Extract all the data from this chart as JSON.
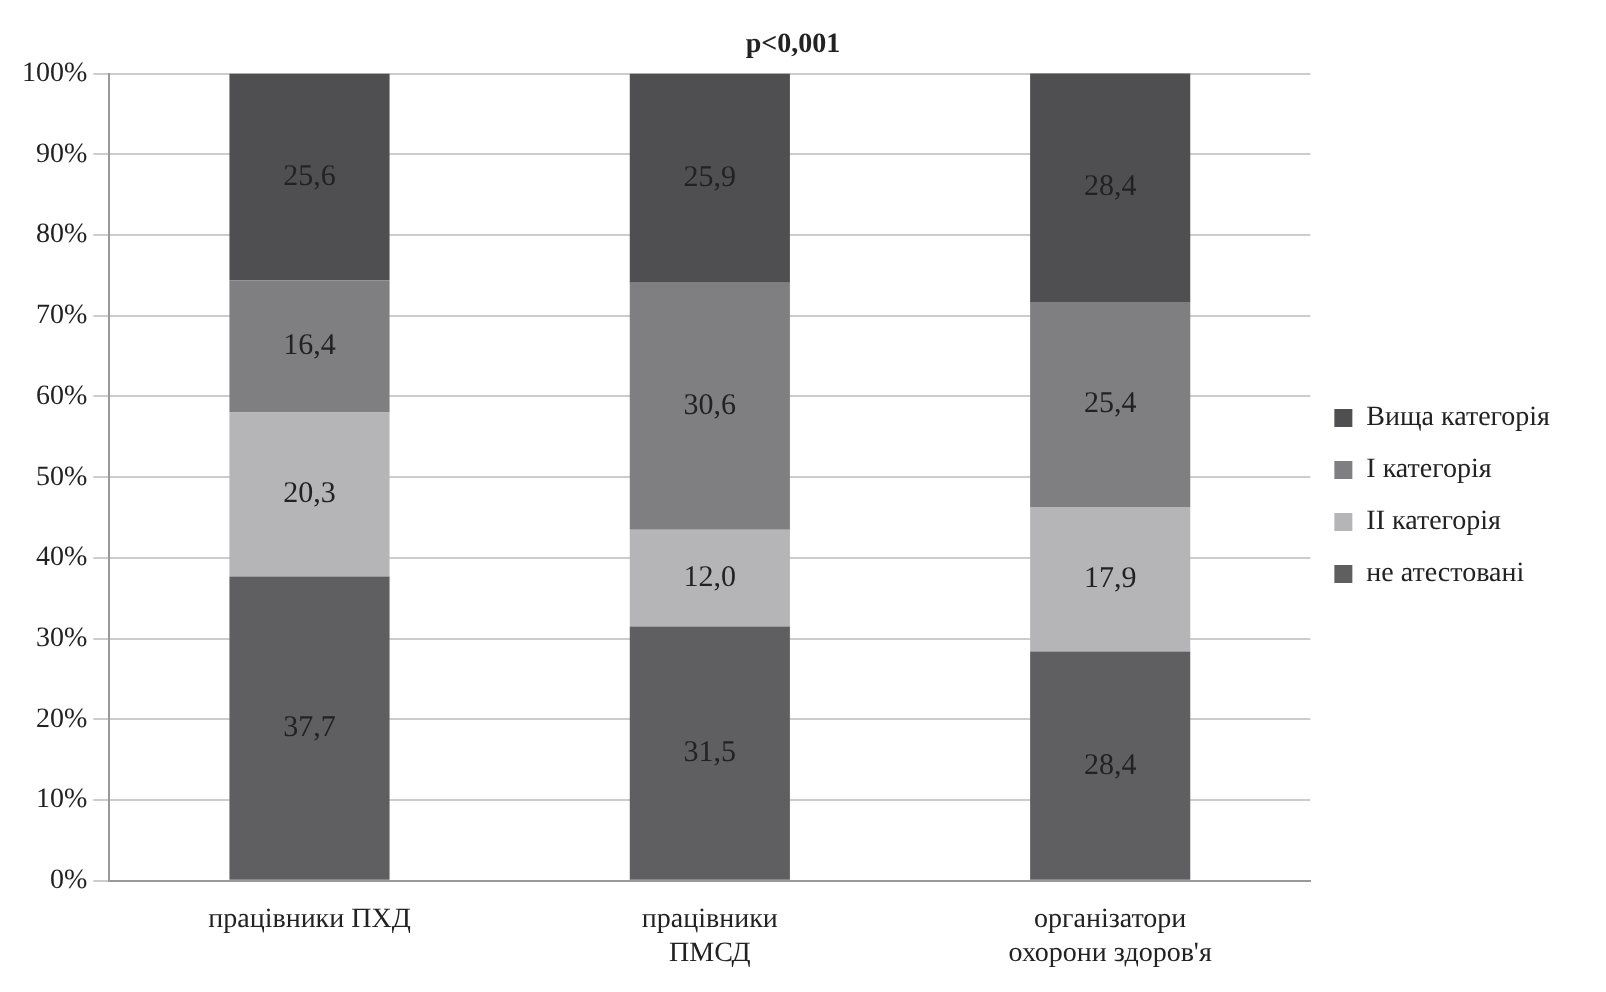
{
  "chart_data": {
    "type": "bar",
    "title": "p<0,001",
    "categories": [
      "працівники ПХД",
      "працівники ПМСД",
      "організатори охорони здоров'я"
    ],
    "stacked": true,
    "series": [
      {
        "name": "не атестовані",
        "color": "#5f5f61",
        "values": [
          37.7,
          31.5,
          28.4
        ],
        "value_labels": [
          "37,7",
          "31,5",
          "28,4"
        ]
      },
      {
        "name": "ІІ категорія",
        "color": "#b5b5b7",
        "values": [
          20.3,
          12.0,
          17.9
        ],
        "value_labels": [
          "20,3",
          "12,0",
          "17,9"
        ]
      },
      {
        "name": "І категорія",
        "color": "#7f7f81",
        "values": [
          16.4,
          30.6,
          25.4
        ],
        "value_labels": [
          "16,4",
          "30,6",
          "25,4"
        ]
      },
      {
        "name": "Вища категорія",
        "color": "#4f4f51",
        "values": [
          25.6,
          25.9,
          28.4
        ],
        "value_labels": [
          "25,6",
          "25,9",
          "28,4"
        ]
      }
    ],
    "ylim": [
      0,
      100
    ],
    "yticks": [
      {
        "value": 0,
        "label": "0%"
      },
      {
        "value": 10,
        "label": "10%"
      },
      {
        "value": 20,
        "label": "20%"
      },
      {
        "value": 30,
        "label": "30%"
      },
      {
        "value": 40,
        "label": "40%"
      },
      {
        "value": 50,
        "label": "50%"
      },
      {
        "value": 60,
        "label": "60%"
      },
      {
        "value": 70,
        "label": "70%"
      },
      {
        "value": 80,
        "label": "80%"
      },
      {
        "value": 90,
        "label": "90%"
      },
      {
        "value": 100,
        "label": "100%"
      }
    ],
    "grid": "y",
    "legend": "right"
  }
}
